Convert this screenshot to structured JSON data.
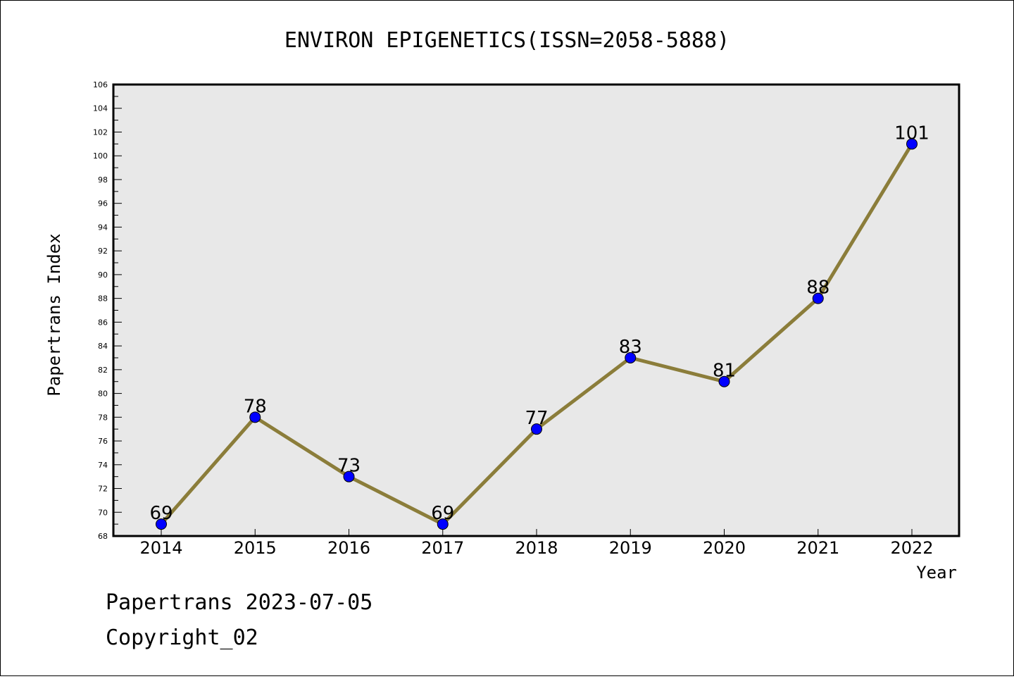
{
  "chart_data": {
    "type": "line",
    "title": "ENVIRON EPIGENETICS(ISSN=2058-5888)",
    "xlabel": "Year",
    "ylabel": "Papertrans Index",
    "categories": [
      "2014",
      "2015",
      "2016",
      "2017",
      "2018",
      "2019",
      "2020",
      "2021",
      "2022"
    ],
    "series": [
      {
        "values": [
          69,
          78,
          73,
          69,
          77,
          83,
          81,
          88,
          101
        ]
      }
    ],
    "data_labels": [
      "69",
      "78",
      "73",
      "69",
      "77",
      "83",
      "81",
      "88",
      "101"
    ],
    "ylim": [
      68,
      106
    ],
    "yticks": [
      "68",
      "70",
      "72",
      "74",
      "76",
      "78",
      "80",
      "82",
      "84",
      "86",
      "88",
      "90",
      "92",
      "94",
      "96",
      "98",
      "100",
      "102",
      "104",
      "106"
    ],
    "grid": false,
    "colors": {
      "plot_background": "#e8e8e8",
      "line": "#8b7d3a",
      "marker": "#0000ff"
    }
  },
  "footer": {
    "line1": "Papertrans 2023-07-05",
    "line2": "Copyright_02"
  }
}
